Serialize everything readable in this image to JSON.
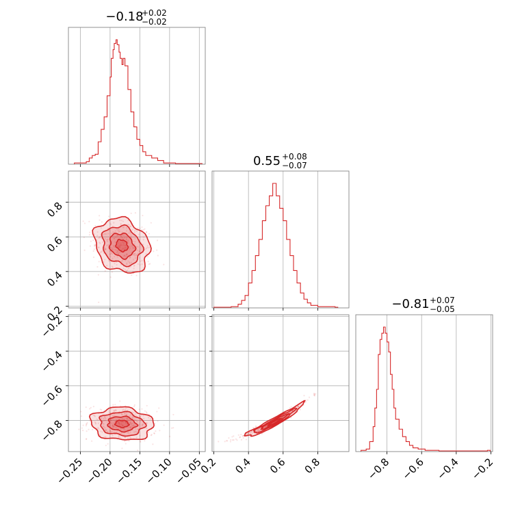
{
  "chart_data": {
    "type": "corner",
    "color": "#d62728",
    "parameters": [
      {
        "median": -0.18,
        "upper": 0.02,
        "lower": 0.02,
        "range": [
          -0.27,
          -0.04
        ]
      },
      {
        "median": 0.55,
        "upper": 0.08,
        "lower": 0.07,
        "range": [
          0.19,
          0.98
        ]
      },
      {
        "median": -0.81,
        "upper": 0.07,
        "lower": 0.05,
        "range": [
          -0.98,
          -0.19
        ]
      }
    ],
    "titles": [
      {
        "main": "−0.18",
        "plus": "+0.02",
        "minus": "−0.02"
      },
      {
        "main": "0.55",
        "plus": "+0.08",
        "minus": "−0.07"
      },
      {
        "main": "−0.81",
        "plus": "+0.07",
        "minus": "−0.05"
      }
    ],
    "ticks": {
      "p0": {
        "values": [
          -0.25,
          -0.2,
          -0.15,
          -0.1,
          -0.05
        ],
        "labels": [
          "−0.25",
          "−0.20",
          "−0.15",
          "−0.10",
          "−0.05"
        ]
      },
      "p1": {
        "values": [
          0.2,
          0.4,
          0.6,
          0.8
        ],
        "labels": [
          "0.2",
          "0.4",
          "0.6",
          "0.8"
        ]
      },
      "p2": {
        "values": [
          -0.8,
          -0.6,
          -0.4,
          -0.2
        ],
        "labels": [
          "−0.8",
          "−0.6",
          "−0.4",
          "−0.2"
        ]
      }
    },
    "histograms": [
      {
        "param": 0,
        "x": [
          -0.26,
          -0.25,
          -0.24,
          -0.235,
          -0.23,
          -0.225,
          -0.22,
          -0.215,
          -0.21,
          -0.205,
          -0.2,
          -0.198,
          -0.195,
          -0.193,
          -0.19,
          -0.188,
          -0.185,
          -0.183,
          -0.18,
          -0.178,
          -0.175,
          -0.17,
          -0.165,
          -0.16,
          -0.155,
          -0.15,
          -0.145,
          -0.14,
          -0.13,
          -0.12,
          -0.11,
          -0.1,
          -0.09,
          -0.07,
          -0.05
        ],
        "density": [
          0.01,
          0.01,
          0.02,
          0.05,
          0.07,
          0.08,
          0.18,
          0.28,
          0.38,
          0.55,
          0.7,
          0.85,
          0.92,
          0.97,
          1.0,
          0.96,
          0.9,
          0.85,
          0.8,
          0.85,
          0.79,
          0.6,
          0.42,
          0.3,
          0.2,
          0.15,
          0.1,
          0.07,
          0.05,
          0.03,
          0.01,
          0.01,
          0.005,
          0.005,
          0.005
        ]
      },
      {
        "param": 1,
        "x": [
          0.2,
          0.3,
          0.34,
          0.36,
          0.38,
          0.4,
          0.42,
          0.44,
          0.46,
          0.48,
          0.5,
          0.52,
          0.54,
          0.56,
          0.58,
          0.6,
          0.62,
          0.64,
          0.66,
          0.68,
          0.7,
          0.72,
          0.74,
          0.76,
          0.8,
          0.9
        ],
        "density": [
          0.005,
          0.01,
          0.03,
          0.06,
          0.1,
          0.2,
          0.3,
          0.42,
          0.55,
          0.7,
          0.82,
          0.9,
          1.0,
          0.9,
          0.8,
          0.7,
          0.55,
          0.42,
          0.3,
          0.2,
          0.12,
          0.07,
          0.04,
          0.02,
          0.01,
          0.005
        ]
      },
      {
        "param": 2,
        "x": [
          -0.95,
          -0.92,
          -0.9,
          -0.88,
          -0.87,
          -0.86,
          -0.85,
          -0.84,
          -0.83,
          -0.82,
          -0.81,
          -0.8,
          -0.79,
          -0.78,
          -0.77,
          -0.76,
          -0.75,
          -0.73,
          -0.71,
          -0.69,
          -0.67,
          -0.65,
          -0.62,
          -0.58,
          -0.5,
          -0.4,
          -0.3,
          -0.22
        ],
        "density": [
          0.01,
          0.02,
          0.08,
          0.2,
          0.35,
          0.5,
          0.78,
          0.9,
          0.95,
          1.0,
          0.95,
          0.88,
          0.8,
          0.62,
          0.5,
          0.35,
          0.26,
          0.18,
          0.12,
          0.08,
          0.05,
          0.03,
          0.02,
          0.01,
          0.005,
          0.005,
          0.005,
          0.01
        ]
      }
    ],
    "pairs": [
      {
        "x_param": 0,
        "y_param": 1,
        "center": [
          -0.18,
          0.55
        ],
        "spread": [
          0.022,
          0.075
        ],
        "correlation": -0.2
      },
      {
        "x_param": 0,
        "y_param": 2,
        "center": [
          -0.18,
          -0.82
        ],
        "spread": [
          0.025,
          0.045
        ],
        "correlation": -0.1
      },
      {
        "x_param": 1,
        "y_param": 2,
        "center": [
          0.55,
          -0.81
        ],
        "spread": [
          0.09,
          0.055
        ],
        "correlation": 0.97
      }
    ]
  }
}
